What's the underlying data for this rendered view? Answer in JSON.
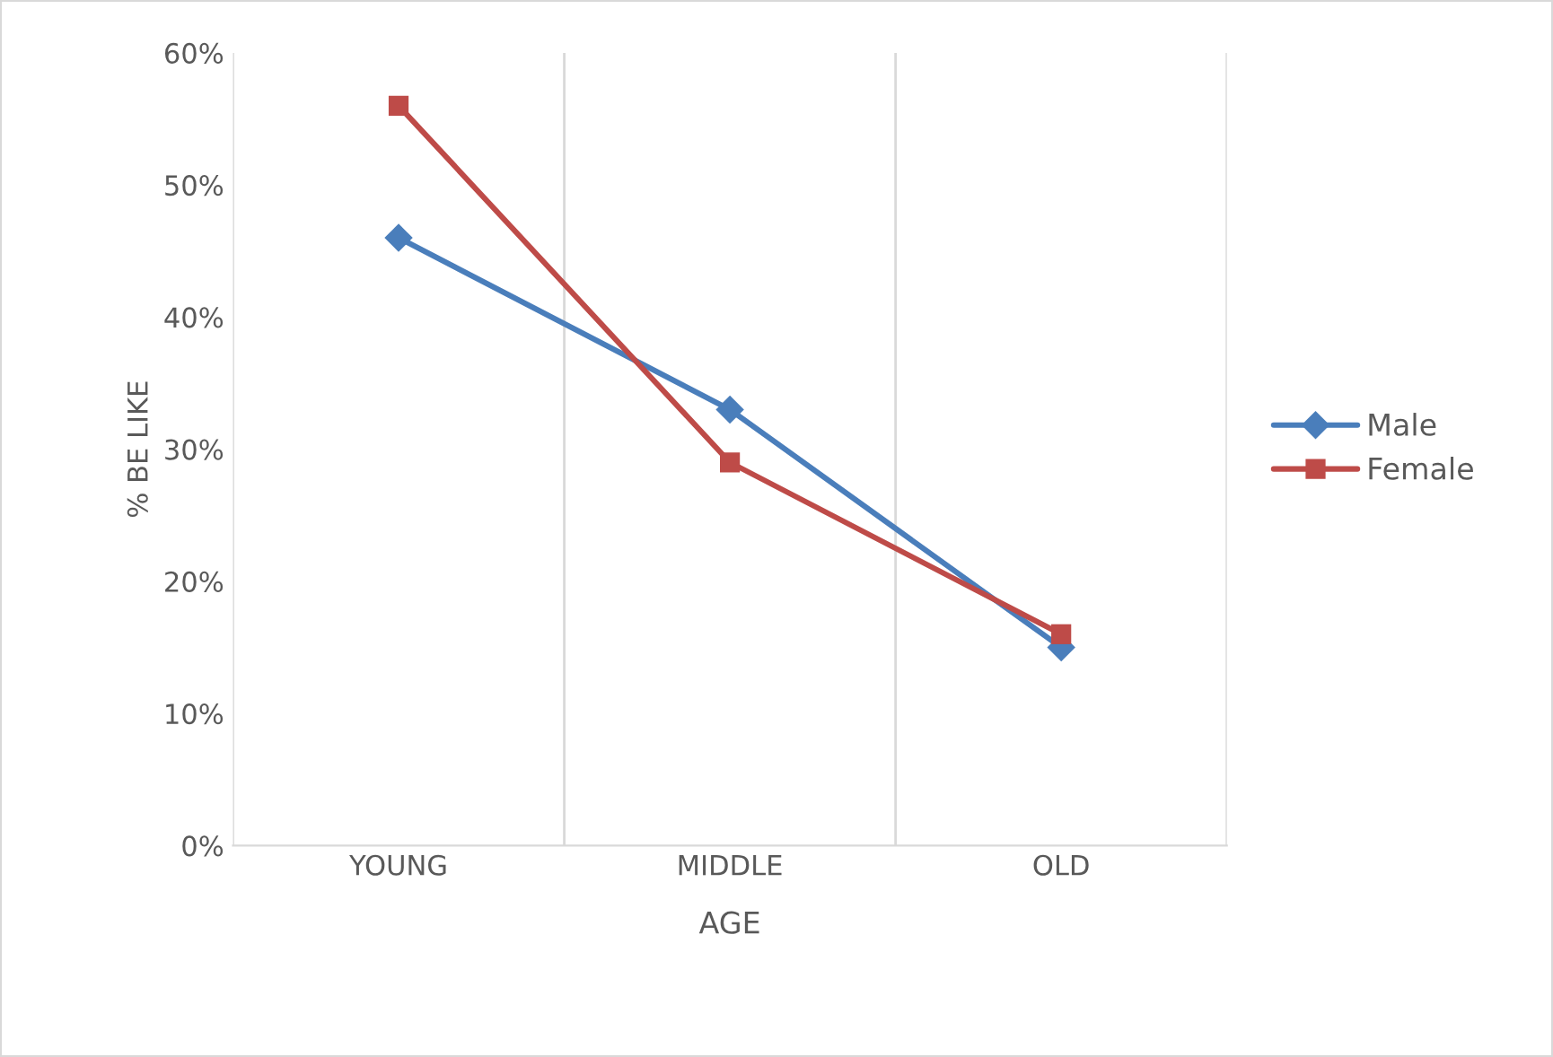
{
  "chart_data": {
    "type": "line",
    "xlabel": "AGE",
    "ylabel": "% BE LIKE",
    "categories": [
      "YOUNG",
      "MIDDLE",
      "OLD"
    ],
    "series": [
      {
        "name": "Male",
        "color": "#4a7ebb",
        "values": [
          46,
          33,
          15
        ],
        "marker": "diamond"
      },
      {
        "name": "Female",
        "color": "#be4b48",
        "values": [
          56,
          29,
          16
        ],
        "marker": "square"
      }
    ],
    "ylim": [
      0,
      60
    ],
    "yticks": [
      {
        "value": 0,
        "label": "0%"
      },
      {
        "value": 10,
        "label": "10%"
      },
      {
        "value": 20,
        "label": "20%"
      },
      {
        "value": 30,
        "label": "30%"
      },
      {
        "value": 40,
        "label": "40%"
      },
      {
        "value": 50,
        "label": "50%"
      },
      {
        "value": 60,
        "label": "60%"
      }
    ],
    "grid": "x",
    "legend": "right",
    "line_style": "solid"
  }
}
